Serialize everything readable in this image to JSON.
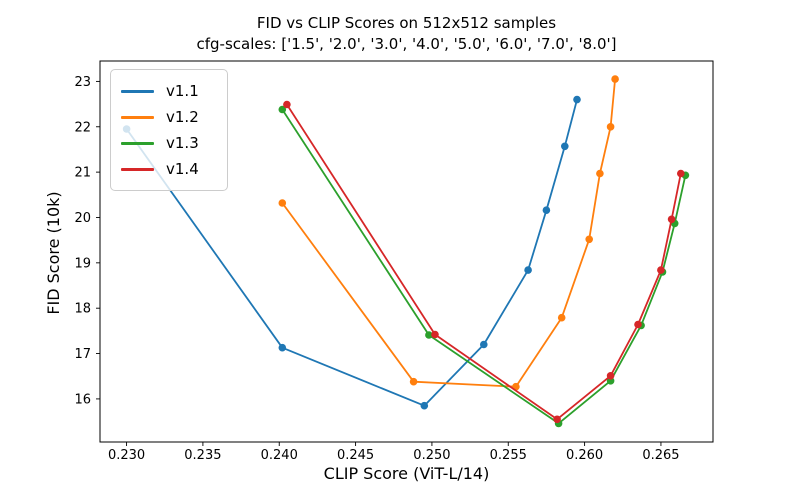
{
  "figure": {
    "title": "FID vs CLIP Scores on 512x512 samples",
    "subtitle": "cfg-scales: ['1.5', '2.0', '3.0', '4.0', '5.0', '6.0', '7.0', '8.0']"
  },
  "chart_data": {
    "type": "line",
    "title": "FID vs CLIP Scores on 512x512 samples",
    "subtitle": "cfg-scales: ['1.5', '2.0', '3.0', '4.0', '5.0', '6.0', '7.0', '8.0']",
    "xlabel": "CLIP Score (ViT-L/14)",
    "ylabel": "FID Score (10k)",
    "cfg_scales": [
      "1.5",
      "2.0",
      "3.0",
      "4.0",
      "5.0",
      "6.0",
      "7.0",
      "8.0"
    ],
    "xlim": [
      0.22826,
      0.26841
    ],
    "ylim": [
      15.05,
      23.45
    ],
    "x_ticks": [
      0.23,
      0.235,
      0.24,
      0.245,
      0.25,
      0.255,
      0.26,
      0.265
    ],
    "x_tick_labels": [
      "0.230",
      "0.235",
      "0.240",
      "0.245",
      "0.250",
      "0.255",
      "0.260",
      "0.265"
    ],
    "y_ticks": [
      16,
      17,
      18,
      19,
      20,
      21,
      22,
      23
    ],
    "y_tick_labels": [
      "16",
      "17",
      "18",
      "19",
      "20",
      "21",
      "22",
      "23"
    ],
    "grid": false,
    "legend_position": "upper left",
    "marker": "o",
    "series": [
      {
        "name": "v1.1",
        "color": "#1f77b4",
        "points": [
          [
            0.23,
            21.95
          ],
          [
            0.2402,
            17.13
          ],
          [
            0.2495,
            15.85
          ],
          [
            0.2534,
            17.2
          ],
          [
            0.2563,
            18.84
          ],
          [
            0.2575,
            20.16
          ],
          [
            0.2587,
            21.57
          ],
          [
            0.2595,
            22.6
          ]
        ]
      },
      {
        "name": "v1.2",
        "color": "#ff7f0e",
        "points": [
          [
            0.2402,
            20.32
          ],
          [
            0.2488,
            16.38
          ],
          [
            0.2555,
            16.27
          ],
          [
            0.2585,
            17.79
          ],
          [
            0.2603,
            19.52
          ],
          [
            0.261,
            20.97
          ],
          [
            0.2617,
            22.0
          ],
          [
            0.262,
            23.05
          ]
        ]
      },
      {
        "name": "v1.3",
        "color": "#2ca02c",
        "points": [
          [
            0.2402,
            22.38
          ],
          [
            0.2498,
            17.41
          ],
          [
            0.2583,
            15.46
          ],
          [
            0.2617,
            16.4
          ],
          [
            0.2637,
            17.62
          ],
          [
            0.2651,
            18.8
          ],
          [
            0.2659,
            19.87
          ],
          [
            0.2666,
            20.93
          ]
        ]
      },
      {
        "name": "v1.4",
        "color": "#d62728",
        "points": [
          [
            0.2405,
            22.49
          ],
          [
            0.2502,
            17.42
          ],
          [
            0.2582,
            15.55
          ],
          [
            0.2617,
            16.51
          ],
          [
            0.2635,
            17.64
          ],
          [
            0.265,
            18.84
          ],
          [
            0.2657,
            19.96
          ],
          [
            0.2663,
            20.97
          ]
        ]
      }
    ]
  }
}
